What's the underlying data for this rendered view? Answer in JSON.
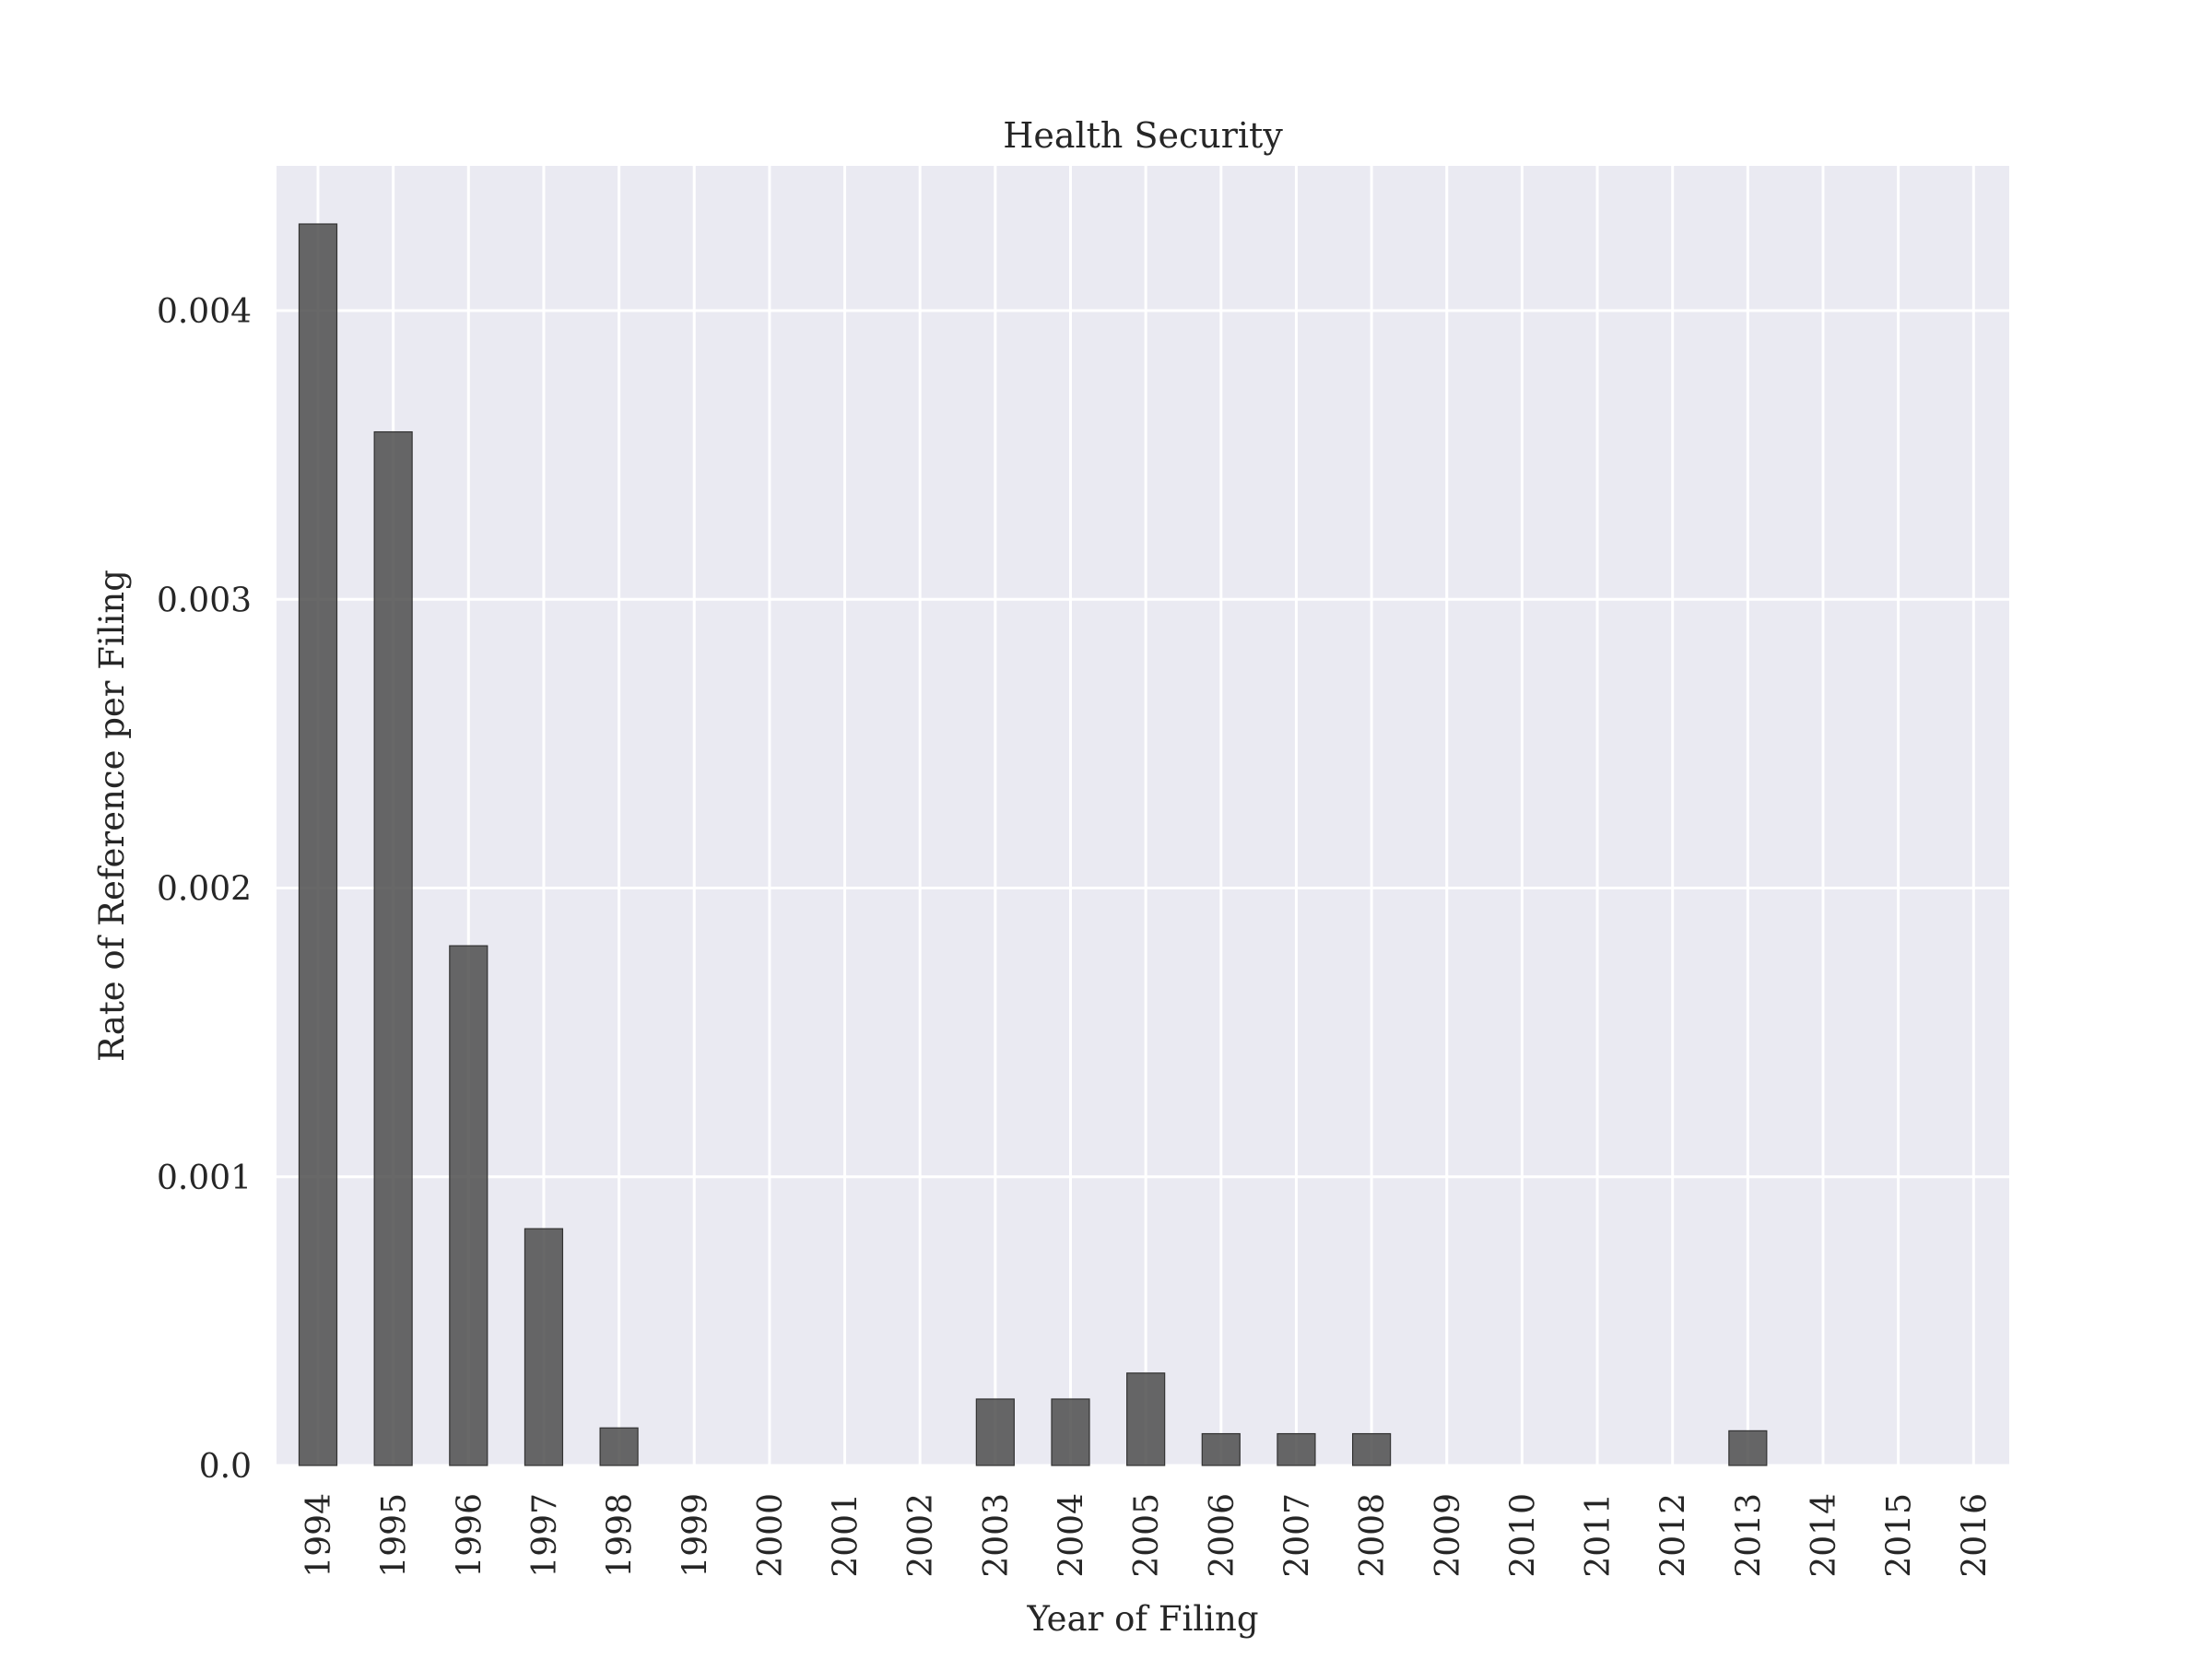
{
  "chart_data": {
    "type": "bar",
    "title": "Health Security",
    "xlabel": "Year of Filing",
    "ylabel": "Rate of Reference per Filing",
    "categories": [
      "1994",
      "1995",
      "1996",
      "1997",
      "1998",
      "1999",
      "2000",
      "2001",
      "2002",
      "2003",
      "2004",
      "2005",
      "2006",
      "2007",
      "2008",
      "2009",
      "2010",
      "2011",
      "2012",
      "2013",
      "2014",
      "2015",
      "2016"
    ],
    "values": [
      0.0043,
      0.00358,
      0.0018,
      0.00082,
      0.00013,
      0,
      0,
      0,
      0,
      0.00023,
      0.00023,
      0.00032,
      0.00011,
      0.00011,
      0.00011,
      0,
      0,
      0,
      0,
      0.00012,
      0,
      0,
      0
    ],
    "yticks": [
      0.0,
      0.001,
      0.002,
      0.003,
      0.004
    ],
    "ytick_labels": [
      "0.0",
      "0.001",
      "0.002",
      "0.003",
      "0.004"
    ],
    "ylim": [
      0,
      0.0045
    ],
    "grid": true,
    "legend": "none",
    "colors": {
      "background": "#eaeaf2",
      "bar": "#4d4d4d",
      "grid": "#ffffff"
    }
  }
}
